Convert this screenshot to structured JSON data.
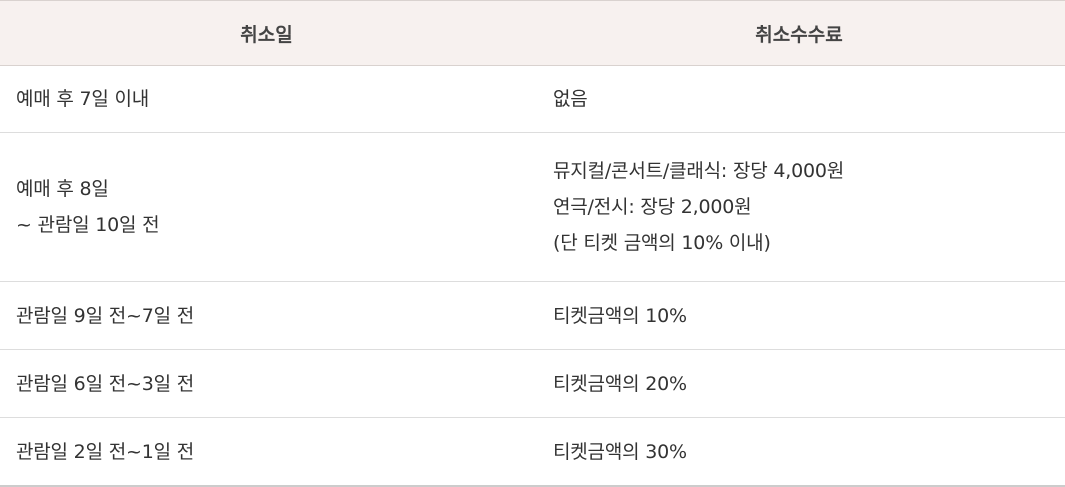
{
  "header": {
    "col1": "취소일",
    "col2": "취소수수료"
  },
  "rows": [
    {
      "date_lines": [
        "예매 후 7일 이내"
      ],
      "fee_lines": [
        "없음"
      ]
    },
    {
      "date_lines": [
        "예매 후 8일",
        "~ 관람일 10일 전"
      ],
      "fee_lines": [
        "뮤지컬/콘서트/클래식: 장당 4,000원",
        "연극/전시: 장당 2,000원",
        "(단 티켓 금액의 10% 이내)"
      ]
    },
    {
      "date_lines": [
        "관람일 9일 전~7일 전"
      ],
      "fee_lines": [
        "티켓금액의 10%"
      ]
    },
    {
      "date_lines": [
        "관람일 6일 전~3일 전"
      ],
      "fee_lines": [
        "티켓금액의 20%"
      ]
    },
    {
      "date_lines": [
        "관람일 2일 전~1일 전"
      ],
      "fee_lines": [
        "티켓금액의 30%"
      ]
    }
  ]
}
